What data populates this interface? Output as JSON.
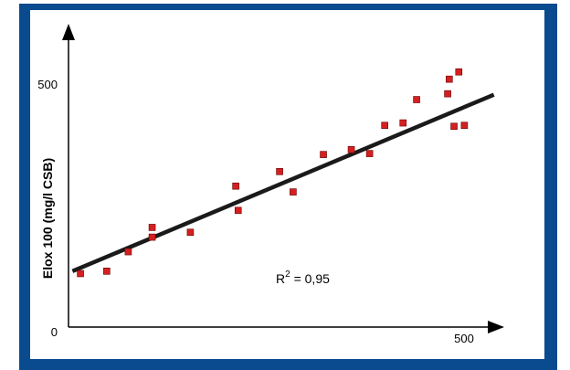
{
  "colors": {
    "frame": "#0a4a8f",
    "background": "#ffffff",
    "marker": "#d42020",
    "marker_edge": "#6a0000",
    "fit_line": "#1a1a1a",
    "axes": "#000000"
  },
  "chart_data": {
    "type": "scatter",
    "title": "",
    "xlabel": "",
    "ylabel": "Elox 100  (mg/l CSB)",
    "xlim": [
      -45,
      600
    ],
    "ylim": [
      0,
      620
    ],
    "x_ticks": [
      {
        "value": 0,
        "label": "0"
      },
      {
        "value": 500,
        "label": "500"
      }
    ],
    "y_ticks": [
      {
        "value": 0,
        "label": "0"
      },
      {
        "value": 500,
        "label": "500"
      }
    ],
    "grid": false,
    "legend": "none",
    "points": [
      {
        "x": 15,
        "y": 110
      },
      {
        "x": 48,
        "y": 115
      },
      {
        "x": 75,
        "y": 155
      },
      {
        "x": 105,
        "y": 185
      },
      {
        "x": 105,
        "y": 205
      },
      {
        "x": 153,
        "y": 195
      },
      {
        "x": 210,
        "y": 290
      },
      {
        "x": 213,
        "y": 240
      },
      {
        "x": 265,
        "y": 320
      },
      {
        "x": 282,
        "y": 278
      },
      {
        "x": 320,
        "y": 355
      },
      {
        "x": 355,
        "y": 365
      },
      {
        "x": 378,
        "y": 357
      },
      {
        "x": 397,
        "y": 415
      },
      {
        "x": 420,
        "y": 420
      },
      {
        "x": 437,
        "y": 468
      },
      {
        "x": 476,
        "y": 480
      },
      {
        "x": 478,
        "y": 510
      },
      {
        "x": 484,
        "y": 413
      },
      {
        "x": 490,
        "y": 525
      },
      {
        "x": 497,
        "y": 415
      }
    ],
    "fit_line": {
      "x": [
        5,
        534
      ],
      "y": [
        115,
        478
      ]
    },
    "annotation": {
      "base": "R",
      "sup": "2",
      "rest": " = 0,95"
    }
  }
}
